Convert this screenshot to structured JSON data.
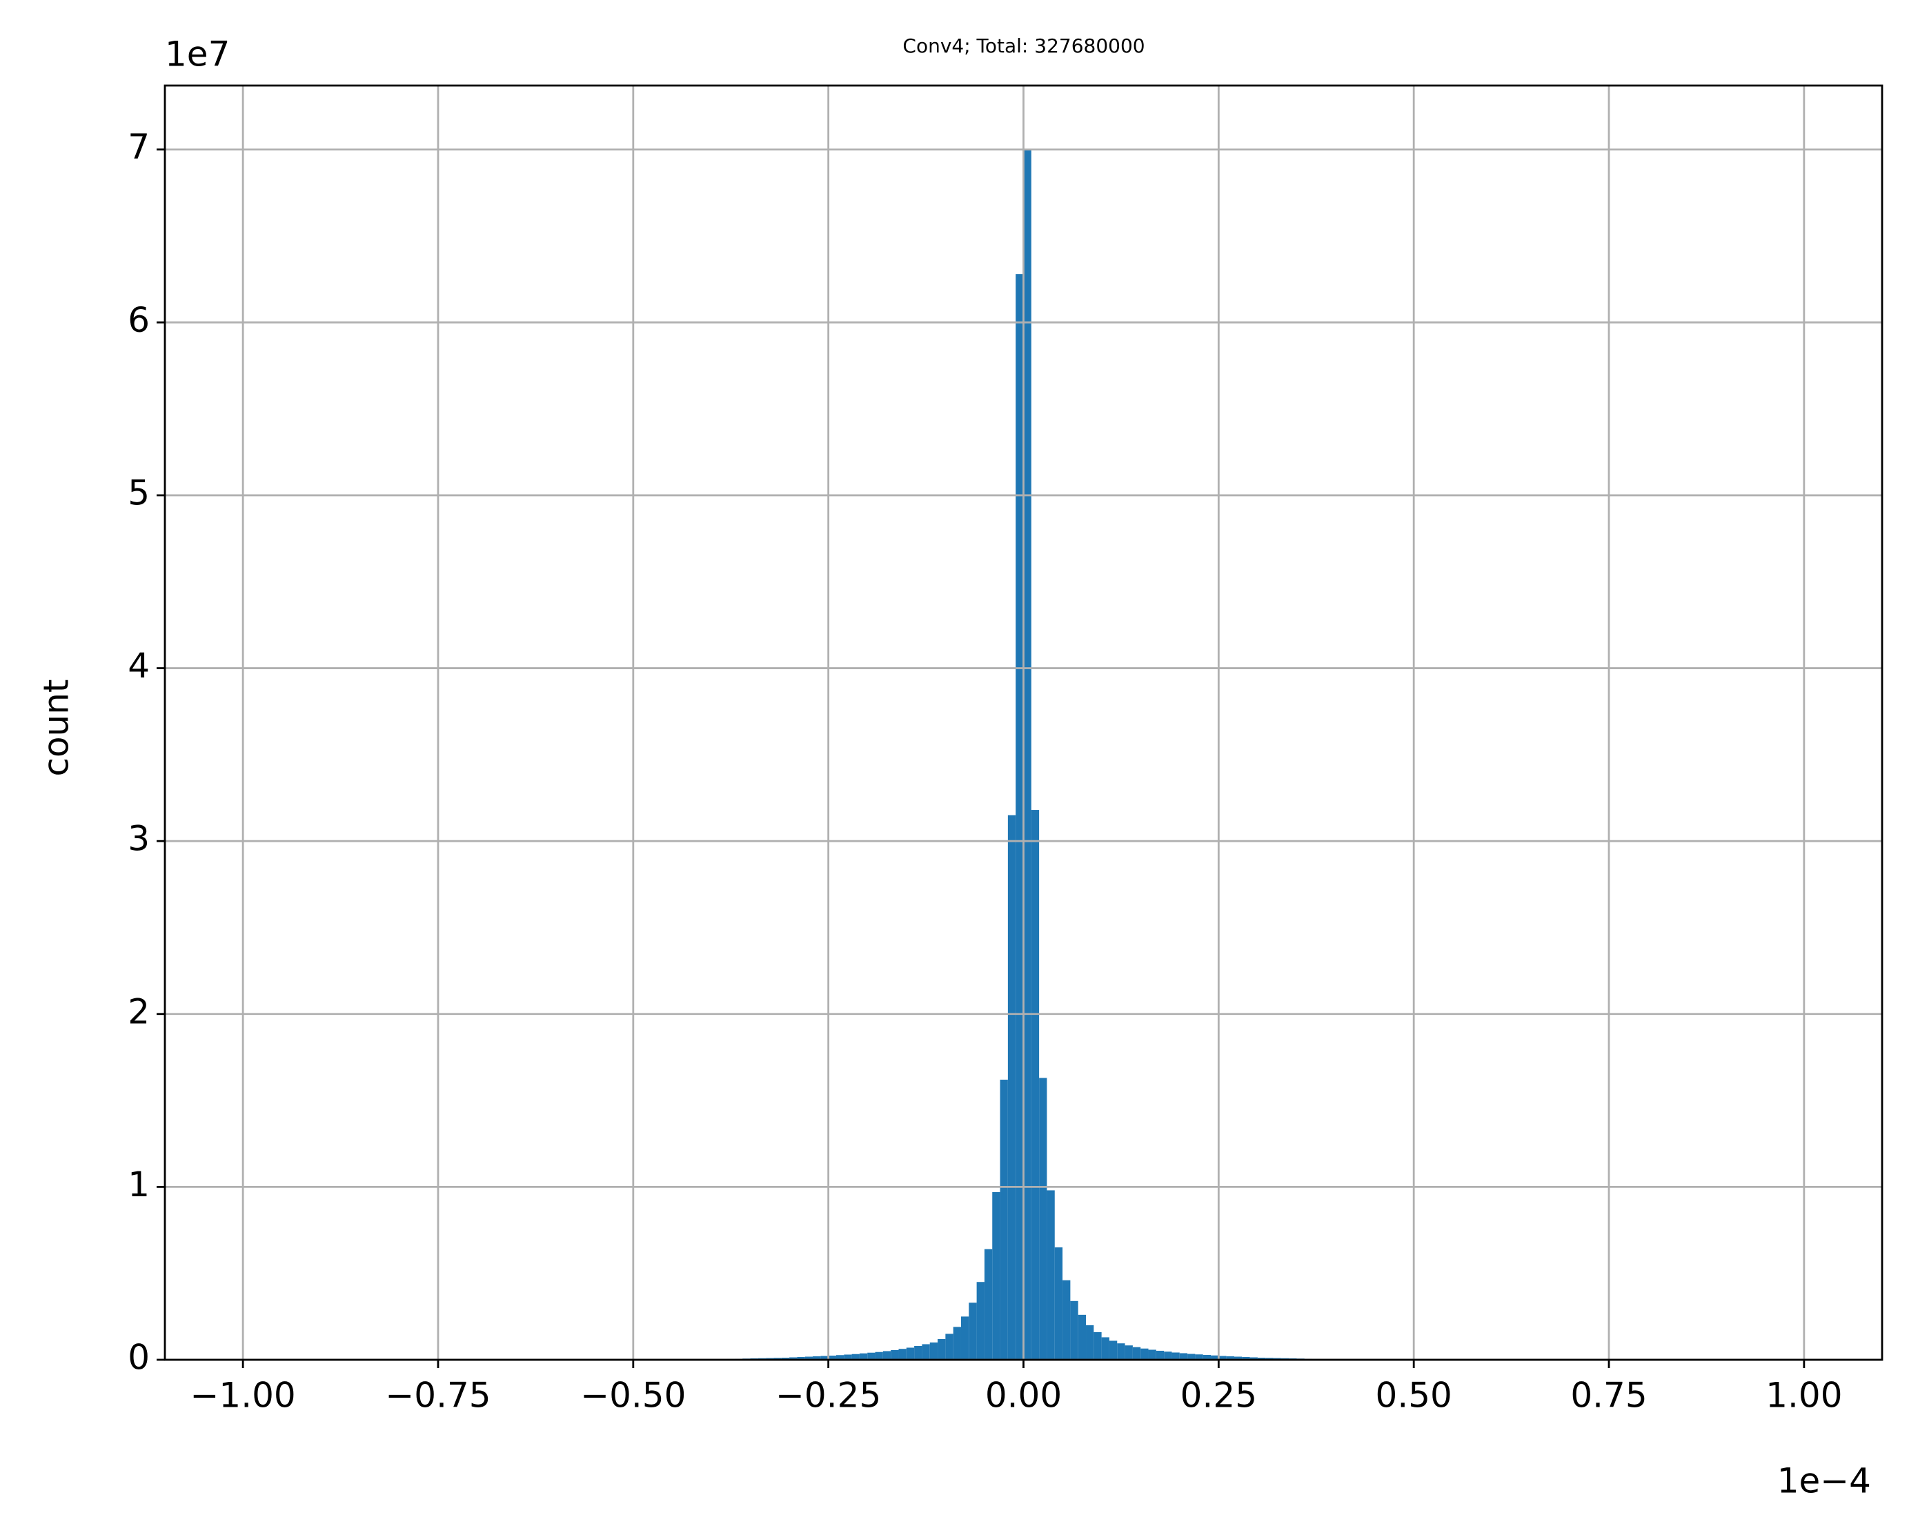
{
  "chart_data": {
    "type": "histogram",
    "title": "Conv4; Total: 327680000",
    "ylabel": "count",
    "x_offset_label": "1e−4",
    "y_offset_label": "1e7",
    "color": "#1f77b4",
    "grid": true,
    "bins": [
      -0.4,
      -0.39,
      -0.38,
      -0.37,
      -0.36,
      -0.35,
      -0.34,
      -0.33,
      -0.32,
      -0.31,
      -0.3,
      -0.29,
      -0.28,
      -0.27,
      -0.26,
      -0.25,
      -0.24,
      -0.23,
      -0.22,
      -0.21,
      -0.2,
      -0.19,
      -0.18,
      -0.17,
      -0.16,
      -0.15,
      -0.14,
      -0.13,
      -0.12,
      -0.11,
      -0.1,
      -0.09,
      -0.08,
      -0.07,
      -0.06,
      -0.05,
      -0.04,
      -0.03,
      -0.02,
      -0.01,
      0,
      0.01,
      0.02,
      0.03,
      0.04,
      0.05,
      0.06,
      0.07,
      0.08,
      0.09,
      0.1,
      0.11,
      0.12,
      0.13,
      0.14,
      0.15,
      0.16,
      0.17,
      0.18,
      0.19,
      0.2,
      0.21,
      0.22,
      0.23,
      0.24,
      0.25,
      0.26,
      0.27,
      0.28,
      0.29,
      0.3,
      0.31,
      0.32,
      0.33,
      0.34,
      0.35,
      0.36,
      0.37,
      0.38,
      0.39,
      0.4
    ],
    "counts": [
      0.003,
      0.004,
      0.005,
      0.006,
      0.007,
      0.008,
      0.009,
      0.01,
      0.011,
      0.012,
      0.014,
      0.016,
      0.018,
      0.02,
      0.022,
      0.024,
      0.027,
      0.03,
      0.033,
      0.037,
      0.041,
      0.045,
      0.05,
      0.056,
      0.063,
      0.07,
      0.08,
      0.09,
      0.1,
      0.12,
      0.15,
      0.19,
      0.25,
      0.33,
      0.45,
      0.64,
      0.97,
      1.62,
      3.15,
      6.28,
      7.0,
      3.18,
      1.63,
      0.98,
      0.65,
      0.46,
      0.34,
      0.26,
      0.2,
      0.16,
      0.13,
      0.11,
      0.095,
      0.083,
      0.073,
      0.065,
      0.058,
      0.052,
      0.047,
      0.042,
      0.038,
      0.034,
      0.031,
      0.028,
      0.025,
      0.022,
      0.02,
      0.018,
      0.016,
      0.014,
      0.012,
      0.011,
      0.01,
      0.009,
      0.008,
      0.007,
      0.006,
      0.005,
      0.004,
      0.003
    ],
    "xlim": [
      -1.1,
      1.1
    ],
    "ylim": [
      0,
      7.37
    ],
    "xticks": [
      {
        "value": -1,
        "label": "−1.00"
      },
      {
        "value": -0.75,
        "label": "−0.75"
      },
      {
        "value": -0.5,
        "label": "−0.50"
      },
      {
        "value": -0.25,
        "label": "−0.25"
      },
      {
        "value": 0,
        "label": "0.00"
      },
      {
        "value": 0.25,
        "label": "0.25"
      },
      {
        "value": 0.5,
        "label": "0.50"
      },
      {
        "value": 0.75,
        "label": "0.75"
      },
      {
        "value": 1,
        "label": "1.00"
      }
    ],
    "yticks": [
      0,
      1,
      2,
      3,
      4,
      5,
      6,
      7
    ]
  }
}
